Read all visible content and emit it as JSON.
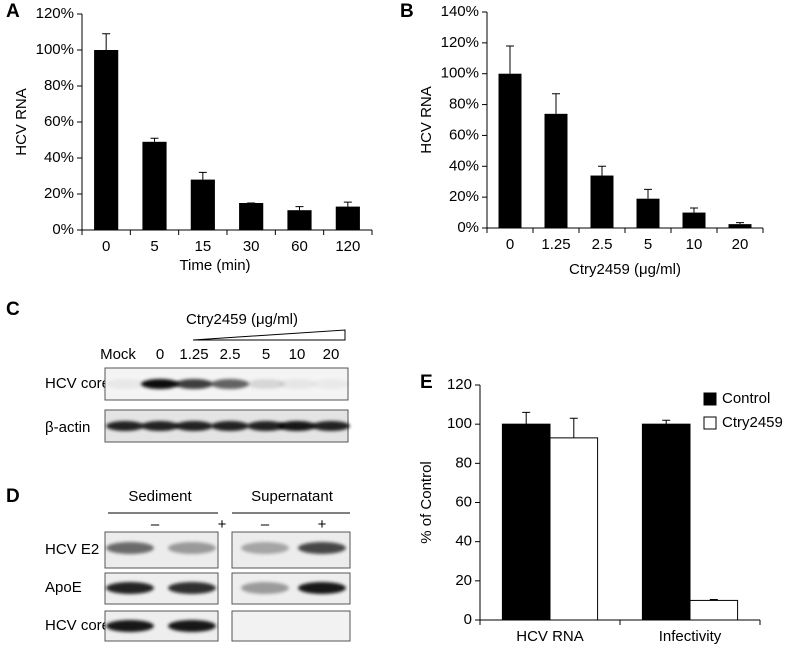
{
  "chart_data": [
    {
      "type": "bar",
      "panel_label": "A",
      "categories": [
        "0",
        "5",
        "15",
        "30",
        "60",
        "120"
      ],
      "values": [
        100,
        49,
        28,
        15,
        11,
        13
      ],
      "errors": [
        9,
        2,
        4,
        0,
        2,
        2.5
      ],
      "color": "#000000",
      "ylim": [
        0,
        120
      ],
      "yticks": [
        {
          "value": 0,
          "label": "0%"
        },
        {
          "value": 20,
          "label": "20%"
        },
        {
          "value": 40,
          "label": "40%"
        },
        {
          "value": 60,
          "label": "60%"
        },
        {
          "value": 80,
          "label": "80%"
        },
        {
          "value": 100,
          "label": "100%"
        },
        {
          "value": 120,
          "label": "120%"
        }
      ],
      "ylabel": "HCV RNA",
      "xlabel": "Time (min)"
    },
    {
      "type": "bar",
      "panel_label": "B",
      "categories": [
        "0",
        "1.25",
        "2.5",
        "5",
        "10",
        "20"
      ],
      "values": [
        100,
        74,
        34,
        19,
        10,
        2.5
      ],
      "errors": [
        18,
        13,
        6,
        6,
        3,
        1
      ],
      "color": "#000000",
      "ylim": [
        0,
        140
      ],
      "yticks": [
        {
          "value": 0,
          "label": "0%"
        },
        {
          "value": 20,
          "label": "20%"
        },
        {
          "value": 40,
          "label": "40%"
        },
        {
          "value": 60,
          "label": "60%"
        },
        {
          "value": 80,
          "label": "80%"
        },
        {
          "value": 100,
          "label": "100%"
        },
        {
          "value": 120,
          "label": "120%"
        },
        {
          "value": 140,
          "label": "140%"
        }
      ],
      "ylabel": "HCV RNA",
      "xlabel": "Ctry2459 (μg/ml)"
    },
    {
      "type": "grouped_bar",
      "panel_label": "E",
      "categories": [
        "HCV RNA",
        "Infectivity"
      ],
      "series": [
        {
          "name": "Control",
          "color": "#000000",
          "values": [
            100,
            100
          ],
          "errors": [
            6,
            2
          ]
        },
        {
          "name": "Ctry2459",
          "color": "#ffffff",
          "values": [
            93,
            10
          ],
          "errors": [
            10,
            0.5
          ]
        }
      ],
      "ylim": [
        0,
        120
      ],
      "yticks": [
        0,
        20,
        40,
        60,
        80,
        100,
        120
      ],
      "ylabel": "% of Control",
      "legend": "upper right"
    }
  ],
  "blots": {
    "c": {
      "panel_label": "C",
      "header": "Ctry2459 (μg/ml)",
      "lanes": [
        "Mock",
        "0",
        "1.25",
        "2.5",
        "5",
        "10",
        "20"
      ],
      "rows": [
        "HCV core",
        "β-actin"
      ]
    },
    "d": {
      "panel_label": "D",
      "groups": [
        "Sediment",
        "Supernatant"
      ],
      "lanes": [
        "–",
        "+",
        "–",
        "+"
      ],
      "rows": [
        "HCV E2",
        "ApoE",
        "HCV core"
      ]
    }
  }
}
